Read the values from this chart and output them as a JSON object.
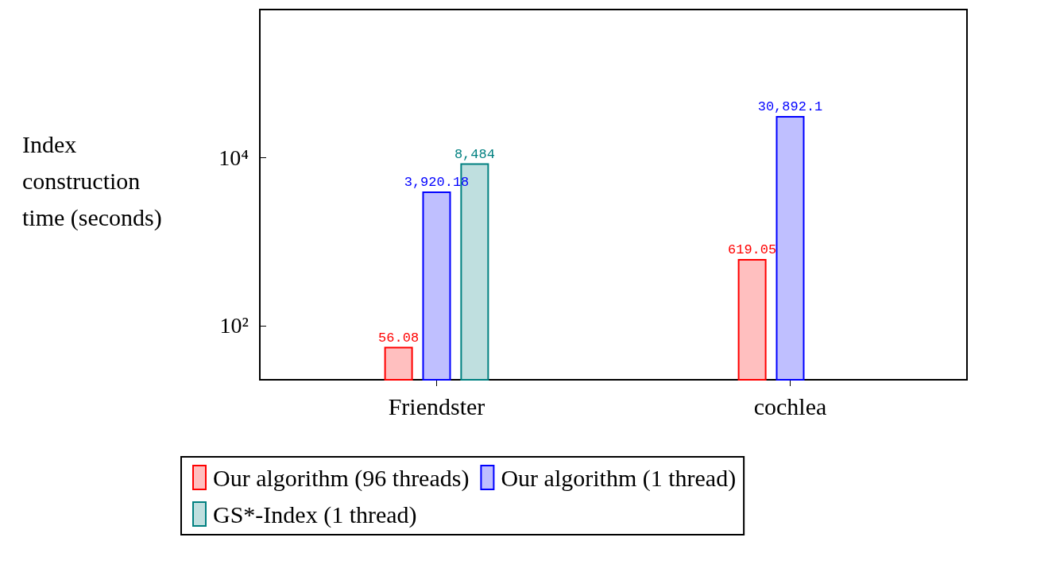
{
  "chart_data": {
    "type": "bar",
    "ylabel": "Index construction time (seconds)",
    "categories": [
      "Friendster",
      "cochlea"
    ],
    "series": [
      {
        "name": "Our algorithm (96 threads)",
        "color": "#ff0000",
        "values": [
          56.08,
          619.05
        ],
        "value_labels": [
          "56.08",
          "619.05"
        ]
      },
      {
        "name": "Our algorithm (1 thread)",
        "color": "#0000ff",
        "values": [
          3920.18,
          30892.1
        ],
        "value_labels": [
          "3,920.18",
          "30,892.1"
        ]
      },
      {
        "name": "GS*-Index (1 thread)",
        "color": "#008080",
        "values": [
          8484,
          null
        ],
        "value_labels": [
          "8,484",
          null
        ]
      }
    ],
    "log": "y",
    "ylim": [
      22.8,
      569000
    ],
    "yticks": [
      {
        "value": 100,
        "label": "10²"
      },
      {
        "value": 10000,
        "label": "10⁴"
      }
    ],
    "grid": false,
    "legend": "bottom"
  }
}
